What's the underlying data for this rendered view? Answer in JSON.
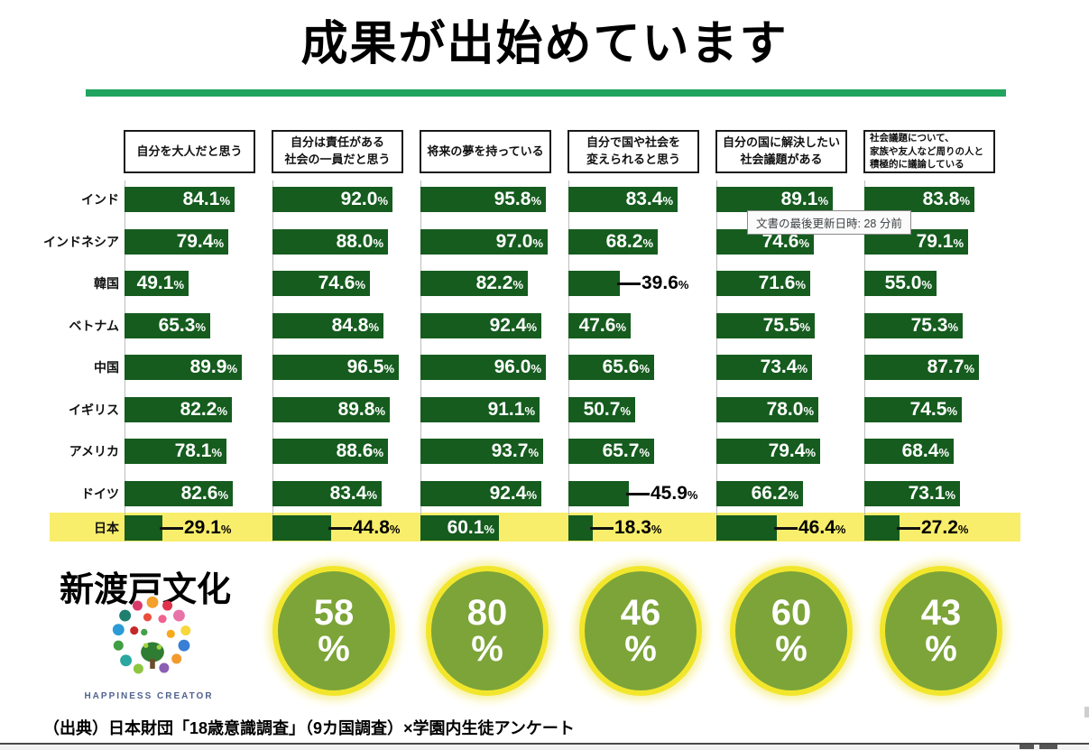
{
  "tooltip": {
    "text": "文書の最後更新日時: 28 分前"
  },
  "school": {
    "name": "新渡戸文化",
    "caption": "HAPPINESS CREATOR"
  },
  "source": "（出典）日本財団「18歳意識調査」（9カ国調査）×学園内生徒アンケート",
  "colors": {
    "bar_green": "#155c1e",
    "underline_green": "#21a45d",
    "highlight_yellow": "#f8ee6b",
    "circle_green": "#7ca438",
    "circle_ring_yellow": "#f2e62c"
  },
  "chart_data": {
    "type": "bar",
    "orientation": "horizontal",
    "title": "成果が出始めています",
    "unit": "%",
    "xlim": [
      0,
      100
    ],
    "questions": [
      "自分を大人だと思う",
      "自分は責任がある\n社会の一員だと思う",
      "将来の夢を持っている",
      "自分で国や社会を\n変えられると思う",
      "自分の国に解決したい\n社会議題がある",
      "社会議題について、\n家族や友人など周りの人と\n積極的に議論している"
    ],
    "rows": [
      {
        "country": "インド",
        "values": [
          "84.1",
          "92.0",
          "95.8",
          "83.4",
          "89.1",
          "83.8"
        ],
        "outside": [],
        "highlight": false
      },
      {
        "country": "インドネシア",
        "values": [
          "79.4",
          "88.0",
          "97.0",
          "68.2",
          "74.6",
          "79.1"
        ],
        "outside": [],
        "highlight": false
      },
      {
        "country": "韓国",
        "values": [
          "49.1",
          "74.6",
          "82.2",
          "39.6",
          "71.6",
          "55.0"
        ],
        "outside": [
          3
        ],
        "highlight": false
      },
      {
        "country": "ベトナム",
        "values": [
          "65.3",
          "84.8",
          "92.4",
          "47.6",
          "75.5",
          "75.3"
        ],
        "outside": [],
        "highlight": false
      },
      {
        "country": "中国",
        "values": [
          "89.9",
          "96.5",
          "96.0",
          "65.6",
          "73.4",
          "87.7"
        ],
        "outside": [],
        "highlight": false
      },
      {
        "country": "イギリス",
        "values": [
          "82.2",
          "89.8",
          "91.1",
          "50.7",
          "78.0",
          "74.5"
        ],
        "outside": [],
        "highlight": false
      },
      {
        "country": "アメリカ",
        "values": [
          "78.1",
          "88.6",
          "93.7",
          "65.7",
          "79.4",
          "68.4"
        ],
        "outside": [],
        "highlight": false
      },
      {
        "country": "ドイツ",
        "values": [
          "82.6",
          "83.4",
          "92.4",
          "45.9",
          "66.2",
          "73.1"
        ],
        "outside": [
          3
        ],
        "highlight": false
      },
      {
        "country": "日本",
        "values": [
          "29.1",
          "44.8",
          "60.1",
          "18.3",
          "46.4",
          "27.2"
        ],
        "outside": [
          0,
          1,
          3,
          4,
          5
        ],
        "highlight": true
      }
    ],
    "school_circle_values": [
      "58",
      "80",
      "46",
      "60",
      "43"
    ]
  }
}
